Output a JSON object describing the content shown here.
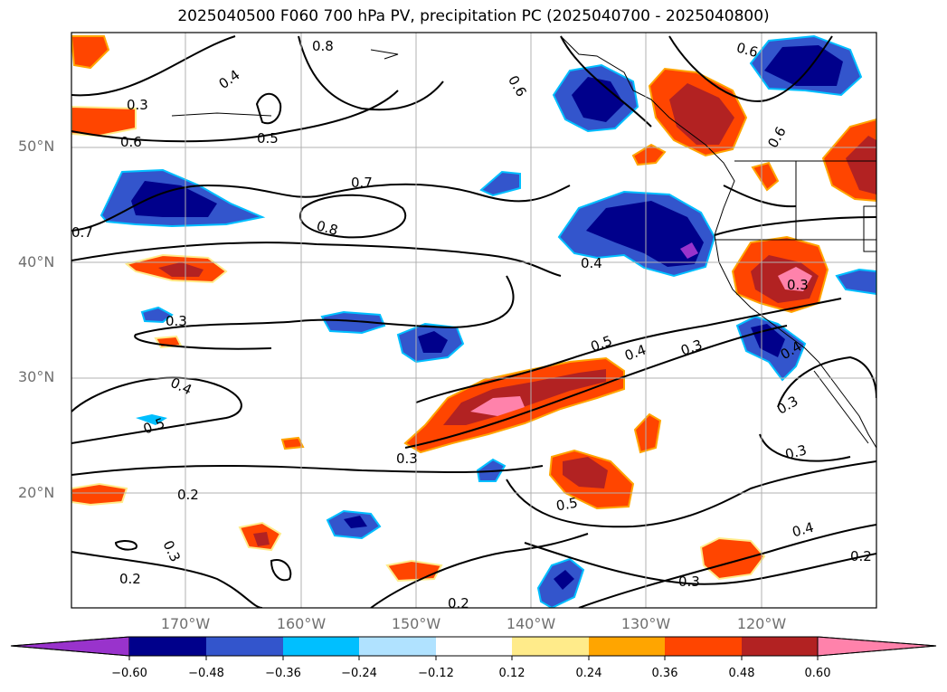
{
  "title": "2025040500 F060 700 hPa PV, precipitation PC (2025040700 - 2025040800)",
  "colors": {
    "neg_060": "#9933cc",
    "neg_048": "#00008b",
    "neg_036": "#3355cc",
    "neg_024": "#00bfff",
    "neg_012": "#b0e2ff",
    "zero": "#ffffff",
    "pos_012": "#ffeb8a",
    "pos_024": "#ffa500",
    "pos_036": "#ff4500",
    "pos_048": "#b22222",
    "pos_060": "#ff82ab",
    "contour": "#000000",
    "grid": "#b0b0b0"
  },
  "map": {
    "lat_labels": [
      "50°N",
      "40°N",
      "30°N",
      "20°N"
    ],
    "lon_labels": [
      "170°W",
      "160°W",
      "150°W",
      "140°W",
      "130°W",
      "120°W"
    ],
    "contour_labels": [
      "0.4",
      "0.3",
      "0.5",
      "0.6",
      "0.8",
      "0.6",
      "0.6",
      "0.7",
      "0.8",
      "0.7",
      "0.6",
      "0.4",
      "0.3",
      "0.5",
      "0.4",
      "0.3",
      "0.3",
      "0.4",
      "0.4",
      "0.3",
      "0.3",
      "0.5",
      "0.3",
      "0.2",
      "0.3",
      "0.2",
      "0.5",
      "0.4",
      "0.3",
      "0.2",
      "0.2"
    ]
  },
  "colorbar": {
    "ticks": [
      "−0.60",
      "−0.48",
      "−0.36",
      "−0.24",
      "−0.12",
      "0.12",
      "0.24",
      "0.36",
      "0.48",
      "0.60"
    ]
  }
}
